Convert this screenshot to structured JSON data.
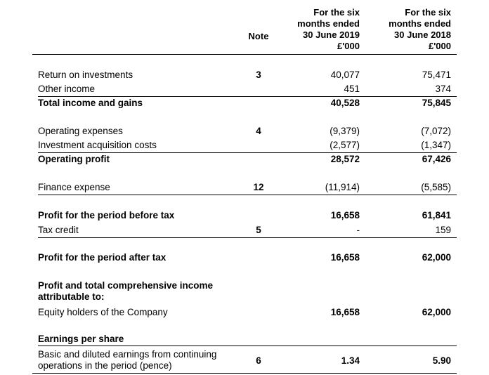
{
  "header": {
    "note": "Note",
    "col1": [
      "For the six",
      "months ended",
      "30 June 2019",
      "£'000"
    ],
    "col2": [
      "For the six",
      "months ended",
      "30 June 2018",
      "£'000"
    ]
  },
  "rows": {
    "roi": {
      "label": "Return on investments",
      "note": "3",
      "v1": "40,077",
      "v2": "75,471"
    },
    "other": {
      "label": "Other income",
      "v1": "451",
      "v2": "374"
    },
    "total": {
      "label": "Total income and gains",
      "v1": "40,528",
      "v2": "75,845"
    },
    "opex": {
      "label": "Operating expenses",
      "note": "4",
      "v1": "(9,379)",
      "v2": "(7,072)"
    },
    "acq": {
      "label": "Investment acquisition costs",
      "v1": "(2,577)",
      "v2": "(1,347)"
    },
    "opprofit": {
      "label": "Operating profit",
      "v1": "28,572",
      "v2": "67,426"
    },
    "finance": {
      "label": "Finance expense",
      "note": "12",
      "v1": "(11,914)",
      "v2": "(5,585)"
    },
    "pbt": {
      "label": "Profit for the period before tax",
      "v1": "16,658",
      "v2": "61,841"
    },
    "tax": {
      "label": "Tax credit",
      "note": "5",
      "v1": "-",
      "v2": "159"
    },
    "pat": {
      "label": "Profit for the period after tax",
      "v1": "16,658",
      "v2": "62,000"
    },
    "attrib": {
      "label": "Profit and total comprehensive income attributable to:"
    },
    "equity": {
      "label": "Equity holders of the Company",
      "v1": "16,658",
      "v2": "62,000"
    },
    "eps_title": {
      "label": "Earnings per share"
    },
    "eps": {
      "label": "Basic and diluted earnings from continuing operations in the period (pence)",
      "note": "6",
      "v1": "1.34",
      "v2": "5.90"
    }
  }
}
